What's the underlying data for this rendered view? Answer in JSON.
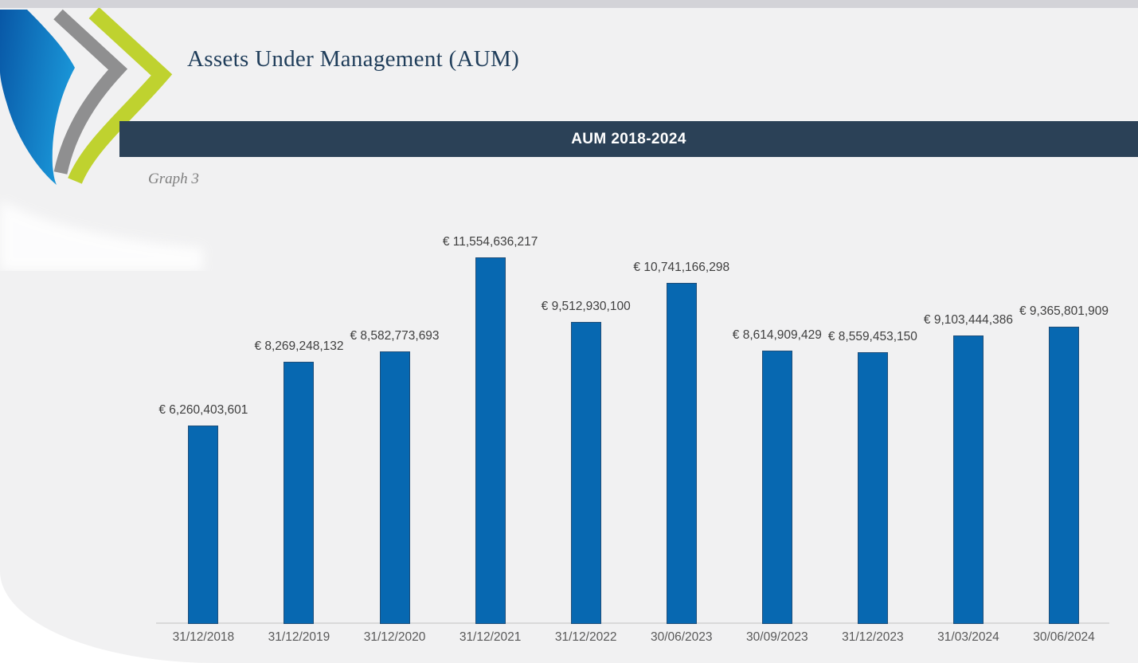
{
  "page": {
    "title": "Assets Under Management (AUM)",
    "banner_title": "AUM 2018-2024",
    "graph_caption": "Graph 3"
  },
  "logo": {
    "name": "chevron-swoosh-logo",
    "colors": {
      "blue_dark": "#0857a6",
      "blue_light": "#1a96d8",
      "gray": "#8f8f90",
      "green": "#bfd22f"
    }
  },
  "colors": {
    "page_bg": "#ffffff",
    "panel_bg": "#f1f1f2",
    "top_strip": "#d3d3d8",
    "banner_bg": "#2b4157",
    "banner_text": "#ffffff",
    "title_text": "#1f3d5a",
    "caption_text": "#7f7f7f",
    "axis_line": "#d9d9d9",
    "value_label": "#3f3f3f",
    "category_label": "#595959"
  },
  "chart_data": {
    "type": "bar",
    "title": "AUM 2018-2024",
    "caption": "Graph 3",
    "currency_symbol": "€",
    "categories": [
      "31/12/2018",
      "31/12/2019",
      "31/12/2020",
      "31/12/2021",
      "31/12/2022",
      "30/06/2023",
      "30/09/2023",
      "31/12/2023",
      "31/03/2024",
      "30/06/2024"
    ],
    "values": [
      6260403601,
      8269248132,
      8582773693,
      11554636217,
      9512930100,
      10741166298,
      8614909429,
      8559453150,
      9103444386,
      9365801909
    ],
    "data_labels": [
      "€ 6,260,403,601",
      "€ 8,269,248,132",
      "€ 8,582,773,693",
      "€ 11,554,636,217",
      "€ 9,512,930,100",
      "€ 10,741,166,298",
      "€ 8,614,909,429",
      "€ 8,559,453,150",
      "€ 9,103,444,386",
      "€ 9,365,801,909"
    ],
    "xlabel": "",
    "ylabel": "",
    "ylim": [
      0,
      11554636217
    ],
    "grid": false,
    "legend": false,
    "bar_color": "#0768b1",
    "bar_border_color": "#1f4e79"
  }
}
